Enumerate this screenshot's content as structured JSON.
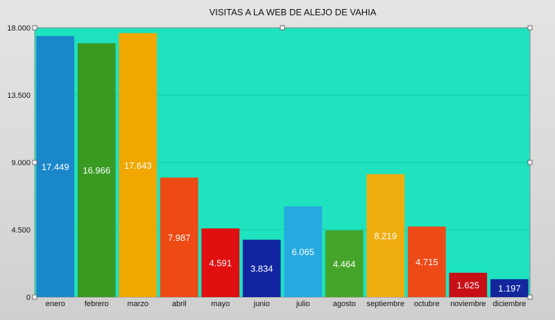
{
  "chart_data": {
    "type": "bar",
    "title": "VISITAS A LA WEB DE ALEJO DE VAHIA",
    "xlabel": "",
    "ylabel": "",
    "categories": [
      "enero",
      "febrero",
      "marzo",
      "abril",
      "mayo",
      "junio",
      "julio",
      "agosto",
      "septiembre",
      "octubre",
      "noviembre",
      "diciembre"
    ],
    "values": [
      17449,
      16966,
      17643,
      7987,
      4591,
      3834,
      6065,
      4464,
      8219,
      4715,
      1625,
      1197
    ],
    "value_labels": [
      "17.449",
      "16.966",
      "17.643",
      "7.987",
      "4.591",
      "3.834",
      "6.065",
      "4.464",
      "8.219",
      "4.715",
      "1.625",
      "1.197"
    ],
    "ylim": [
      0,
      18000
    ],
    "y_ticks": [
      0,
      4500,
      9000,
      13500,
      18000
    ],
    "y_tick_labels": [
      "0",
      "4.500",
      "9.000",
      "13.500",
      "18.000"
    ],
    "grid": true,
    "legend": "none",
    "colors": {
      "plot_background": "#1ee3be",
      "bars": [
        "#1a87c9",
        "#3a9b23",
        "#f0a800",
        "#ee4a14",
        "#e01010",
        "#1225a0",
        "#26a9e0",
        "#45a52a",
        "#f0ad10",
        "#ec4a16",
        "#c80f16",
        "#12279c"
      ]
    }
  }
}
